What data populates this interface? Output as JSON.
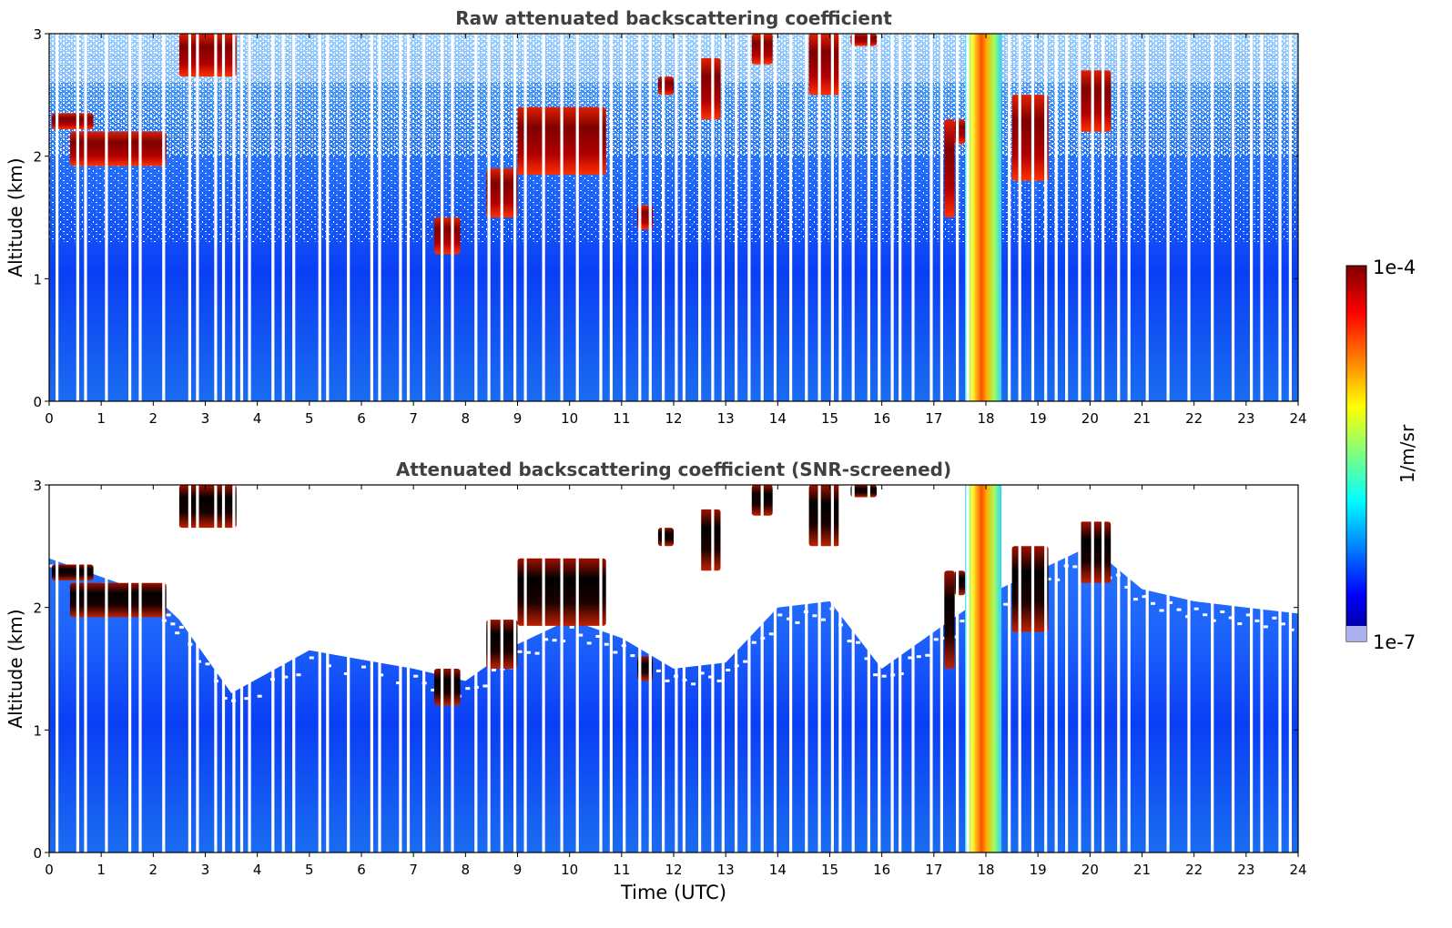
{
  "chart_data": [
    {
      "type": "heatmap",
      "title": "Raw attenuated backscattering coefficient",
      "xlabel": "",
      "ylabel": "Altitude (km)",
      "xlim": [
        0,
        24
      ],
      "ylim": [
        0,
        3
      ],
      "xticks": [
        0,
        1,
        2,
        3,
        4,
        5,
        6,
        7,
        8,
        9,
        10,
        11,
        12,
        13,
        14,
        15,
        16,
        17,
        18,
        19,
        20,
        21,
        22,
        23,
        24
      ],
      "yticks": [
        0,
        1,
        2,
        3
      ],
      "grid": false,
      "noise": "raw",
      "cloud_layers": [
        {
          "t0": 0.05,
          "t1": 0.85,
          "z0": 2.22,
          "z1": 2.35
        },
        {
          "t0": 0.4,
          "t1": 2.25,
          "z0": 1.92,
          "z1": 2.2
        },
        {
          "t0": 2.5,
          "t1": 3.6,
          "z0": 2.65,
          "z1": 3.0
        },
        {
          "t0": 7.4,
          "t1": 7.9,
          "z0": 1.2,
          "z1": 1.5
        },
        {
          "t0": 8.4,
          "t1": 9.0,
          "z0": 1.5,
          "z1": 1.9
        },
        {
          "t0": 9.0,
          "t1": 10.7,
          "z0": 1.85,
          "z1": 2.4
        },
        {
          "t0": 11.3,
          "t1": 11.6,
          "z0": 1.4,
          "z1": 1.6
        },
        {
          "t0": 11.7,
          "t1": 12.0,
          "z0": 2.5,
          "z1": 2.65
        },
        {
          "t0": 12.5,
          "t1": 12.9,
          "z0": 2.3,
          "z1": 2.8
        },
        {
          "t0": 13.5,
          "t1": 13.9,
          "z0": 2.75,
          "z1": 3.0
        },
        {
          "t0": 14.6,
          "t1": 15.2,
          "z0": 2.5,
          "z1": 3.0
        },
        {
          "t0": 15.4,
          "t1": 15.9,
          "z0": 2.9,
          "z1": 3.0
        },
        {
          "t0": 17.2,
          "t1": 17.4,
          "z0": 1.5,
          "z1": 2.3
        },
        {
          "t0": 17.4,
          "t1": 17.6,
          "z0": 2.1,
          "z1": 2.3
        },
        {
          "t0": 18.5,
          "t1": 19.2,
          "z0": 1.8,
          "z1": 2.5
        },
        {
          "t0": 19.8,
          "t1": 20.4,
          "z0": 2.2,
          "z1": 2.7
        }
      ],
      "dust_plume": {
        "t0": 17.6,
        "t1": 18.3,
        "z0": 0.0,
        "z1": 3.0
      },
      "data_gap_times": [
        0.15,
        0.55,
        0.7,
        1.1,
        1.55,
        1.75,
        2.2,
        2.7,
        2.85,
        3.2,
        3.35,
        3.55,
        3.7,
        3.85,
        4.3,
        4.5,
        4.7,
        5.2,
        5.35,
        5.75,
        6.2,
        6.35,
        6.75,
        6.9,
        7.2,
        7.55,
        7.75,
        8.2,
        8.45,
        8.7,
        8.95,
        9.15,
        9.5,
        9.85,
        10.15,
        10.6,
        10.8,
        11.05,
        11.35,
        11.55,
        11.8,
        12.05,
        12.2,
        12.5,
        12.75,
        12.95,
        13.2,
        13.45,
        13.7,
        13.95,
        14.25,
        14.55,
        14.8,
        15.05,
        15.2,
        15.45,
        15.75,
        15.95,
        16.2,
        16.35,
        16.6,
        16.95,
        17.15,
        17.45,
        17.65,
        18.45,
        18.65,
        18.9,
        19.15,
        19.35,
        19.55,
        19.8,
        20.05,
        20.25,
        20.55,
        20.75,
        21.1,
        21.5,
        21.9,
        22.35,
        22.75,
        23.1,
        23.3,
        23.65,
        23.85
      ]
    },
    {
      "type": "heatmap",
      "title": "Attenuated backscattering coefficient (SNR-screened)",
      "xlabel": "Time (UTC)",
      "ylabel": "Altitude (km)",
      "xlim": [
        0,
        24
      ],
      "ylim": [
        0,
        3
      ],
      "xticks": [
        0,
        1,
        2,
        3,
        4,
        5,
        6,
        7,
        8,
        9,
        10,
        11,
        12,
        13,
        14,
        15,
        16,
        17,
        18,
        19,
        20,
        21,
        22,
        23,
        24
      ],
      "yticks": [
        0,
        1,
        2,
        3
      ],
      "grid": false,
      "noise": "screened",
      "screen_top_km": [
        {
          "t": 0.0,
          "z": 2.4
        },
        {
          "t": 2.0,
          "z": 2.1
        },
        {
          "t": 2.5,
          "z": 1.9
        },
        {
          "t": 3.5,
          "z": 1.3
        },
        {
          "t": 5.0,
          "z": 1.65
        },
        {
          "t": 7.0,
          "z": 1.5
        },
        {
          "t": 8.0,
          "z": 1.4
        },
        {
          "t": 9.0,
          "z": 1.7
        },
        {
          "t": 10.0,
          "z": 1.9
        },
        {
          "t": 11.0,
          "z": 1.75
        },
        {
          "t": 12.0,
          "z": 1.5
        },
        {
          "t": 13.0,
          "z": 1.55
        },
        {
          "t": 14.0,
          "z": 2.0
        },
        {
          "t": 15.0,
          "z": 2.05
        },
        {
          "t": 16.0,
          "z": 1.5
        },
        {
          "t": 17.0,
          "z": 1.8
        },
        {
          "t": 18.0,
          "z": 2.1
        },
        {
          "t": 19.0,
          "z": 2.3
        },
        {
          "t": 20.0,
          "z": 2.5
        },
        {
          "t": 21.0,
          "z": 2.15
        },
        {
          "t": 22.0,
          "z": 2.05
        },
        {
          "t": 23.0,
          "z": 2.0
        },
        {
          "t": 24.0,
          "z": 1.95
        }
      ],
      "cloud_layers": [
        {
          "t0": 0.05,
          "t1": 0.85,
          "z0": 2.22,
          "z1": 2.35
        },
        {
          "t0": 0.4,
          "t1": 2.25,
          "z0": 1.92,
          "z1": 2.2
        },
        {
          "t0": 2.5,
          "t1": 3.6,
          "z0": 2.65,
          "z1": 3.0
        },
        {
          "t0": 7.4,
          "t1": 7.9,
          "z0": 1.2,
          "z1": 1.5
        },
        {
          "t0": 8.4,
          "t1": 9.0,
          "z0": 1.5,
          "z1": 1.9
        },
        {
          "t0": 9.0,
          "t1": 10.7,
          "z0": 1.85,
          "z1": 2.4
        },
        {
          "t0": 11.3,
          "t1": 11.6,
          "z0": 1.4,
          "z1": 1.6
        },
        {
          "t0": 11.7,
          "t1": 12.0,
          "z0": 2.5,
          "z1": 2.65
        },
        {
          "t0": 12.5,
          "t1": 12.9,
          "z0": 2.3,
          "z1": 2.8
        },
        {
          "t0": 13.5,
          "t1": 13.9,
          "z0": 2.75,
          "z1": 3.0
        },
        {
          "t0": 14.6,
          "t1": 15.2,
          "z0": 2.5,
          "z1": 3.0
        },
        {
          "t0": 15.4,
          "t1": 15.9,
          "z0": 2.9,
          "z1": 3.0
        },
        {
          "t0": 17.2,
          "t1": 17.4,
          "z0": 1.5,
          "z1": 2.3
        },
        {
          "t0": 17.4,
          "t1": 17.6,
          "z0": 2.1,
          "z1": 2.3
        },
        {
          "t0": 18.5,
          "t1": 19.2,
          "z0": 1.8,
          "z1": 2.5
        },
        {
          "t0": 19.8,
          "t1": 20.4,
          "z0": 2.2,
          "z1": 2.7
        }
      ],
      "dust_plume": {
        "t0": 17.6,
        "t1": 18.3,
        "z0": 0.0,
        "z1": 3.0
      },
      "data_gap_times": [
        0.15,
        0.55,
        0.7,
        1.1,
        1.55,
        1.75,
        2.2,
        2.7,
        2.85,
        3.2,
        3.35,
        3.55,
        3.7,
        3.85,
        4.3,
        4.5,
        4.7,
        5.2,
        5.35,
        5.75,
        6.2,
        6.35,
        6.75,
        6.9,
        7.2,
        7.55,
        7.75,
        8.2,
        8.45,
        8.7,
        8.95,
        9.15,
        9.5,
        9.85,
        10.15,
        10.6,
        10.8,
        11.05,
        11.35,
        11.55,
        11.8,
        12.05,
        12.2,
        12.5,
        12.75,
        12.95,
        13.2,
        13.45,
        13.7,
        13.95,
        14.25,
        14.55,
        14.8,
        15.05,
        15.2,
        15.45,
        15.75,
        15.95,
        16.2,
        16.35,
        16.6,
        16.95,
        17.15,
        17.45,
        17.65,
        18.45,
        18.65,
        18.9,
        19.15,
        19.35,
        19.55,
        19.8,
        20.05,
        20.25,
        20.55,
        20.75,
        21.1,
        21.5,
        21.9,
        22.35,
        22.75,
        23.1,
        23.3,
        23.65,
        23.85
      ]
    }
  ],
  "colorbar": {
    "label": "1/m/sr",
    "max_label": "1e-4",
    "min_label": "1e-7",
    "colormap": "jet",
    "stops": [
      "#00007f",
      "#0000ff",
      "#0080ff",
      "#00ffff",
      "#80ff80",
      "#ffff00",
      "#ff8000",
      "#ff0000",
      "#7f0000"
    ]
  }
}
